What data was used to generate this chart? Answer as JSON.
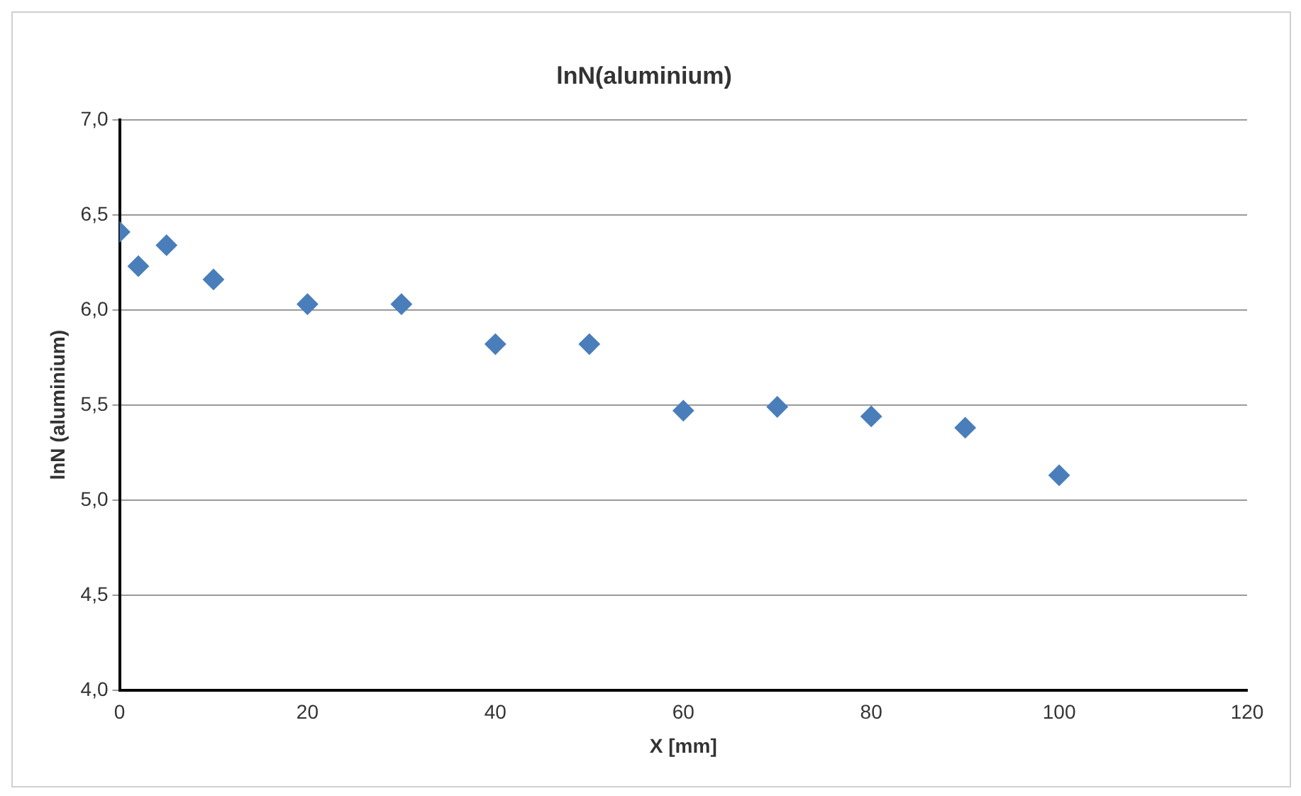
{
  "chart_data": {
    "type": "scatter",
    "title": "lnN(aluminium)",
    "xlabel": "X [mm]",
    "ylabel": "lnN (aluminium)",
    "x": [
      0,
      2,
      5,
      10,
      20,
      30,
      40,
      50,
      60,
      70,
      80,
      90,
      100
    ],
    "series": [
      {
        "color": "#4a7ebb",
        "values": [
          6.41,
          6.23,
          6.34,
          6.16,
          6.03,
          6.03,
          5.82,
          5.82,
          5.47,
          5.49,
          5.44,
          5.38,
          5.13
        ]
      }
    ],
    "xlim": [
      0,
      120
    ],
    "xticks": [
      0,
      20,
      40,
      60,
      80,
      100,
      120
    ],
    "ylim": [
      4,
      7
    ],
    "yticks": [
      {
        "value": 4,
        "label": "4,0"
      },
      {
        "value": 4.5,
        "label": "4,5"
      },
      {
        "value": 5,
        "label": "5,0"
      },
      {
        "value": 5.5,
        "label": "5,5"
      },
      {
        "value": 6,
        "label": "6,0"
      },
      {
        "value": 6.5,
        "label": "6,5"
      },
      {
        "value": 7,
        "label": "7,0"
      }
    ],
    "grid": "y",
    "legend": false,
    "marker": "diamond"
  }
}
